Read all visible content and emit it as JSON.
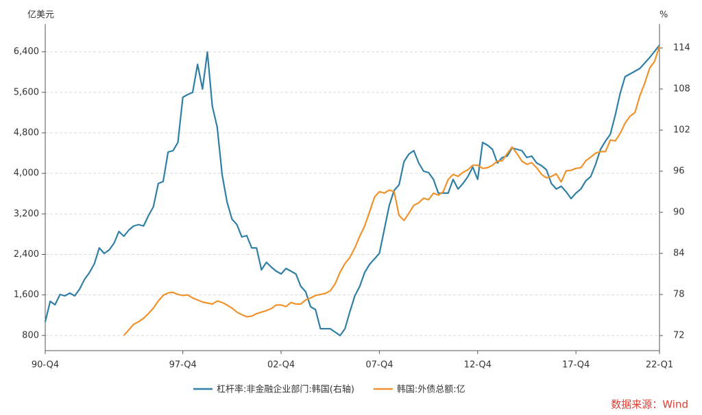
{
  "chart_data": {
    "type": "line",
    "y_label": "亿美元",
    "y2_label": "%",
    "source": "数据来源：Wind",
    "categories": [
      "90-Q4",
      null,
      null,
      null,
      null,
      null,
      null,
      null,
      null,
      null,
      null,
      null,
      null,
      null,
      null,
      null,
      null,
      null,
      null,
      null,
      null,
      null,
      null,
      null,
      null,
      null,
      null,
      null,
      "97-Q4",
      null,
      null,
      null,
      null,
      null,
      null,
      null,
      null,
      null,
      null,
      null,
      null,
      null,
      null,
      null,
      null,
      null,
      null,
      null,
      "02-Q4",
      null,
      null,
      null,
      null,
      null,
      null,
      null,
      null,
      null,
      null,
      null,
      null,
      null,
      null,
      null,
      null,
      null,
      null,
      null,
      "07-Q4",
      null,
      null,
      null,
      null,
      null,
      null,
      null,
      null,
      null,
      null,
      null,
      null,
      null,
      null,
      null,
      null,
      null,
      null,
      null,
      "12-Q4",
      null,
      null,
      null,
      null,
      null,
      null,
      null,
      null,
      null,
      null,
      null,
      null,
      null,
      null,
      null,
      null,
      null,
      null,
      null,
      "17-Q4",
      null,
      null,
      null,
      null,
      null,
      null,
      null,
      null,
      null,
      null,
      null,
      null,
      null,
      null,
      null,
      null,
      "22-Q1"
    ],
    "series": [
      {
        "name": "杠杆率:非金融企业部门:韩国(右轴)",
        "color": "#2e7ea6",
        "axis": "y2",
        "values": [
          74,
          77,
          76.5,
          78,
          77.8,
          78.2,
          77.8,
          78.8,
          80.2,
          81.2,
          82.5,
          84.8,
          84,
          84.5,
          85.5,
          87.2,
          86.5,
          87.4,
          88,
          88.2,
          88,
          89.5,
          90.8,
          94.2,
          94.5,
          98.8,
          99,
          100.2,
          106.8,
          107.2,
          107.5,
          111.6,
          108,
          113.4,
          105.5,
          102.4,
          95.5,
          91.5,
          89,
          88.2,
          86.4,
          86.6,
          84.8,
          84.8,
          81.6,
          82.7,
          82,
          81.4,
          81,
          81.8,
          81.4,
          81,
          79.2,
          78.4,
          76.2,
          75.8,
          73,
          73,
          73,
          72.5,
          72,
          73,
          75.5,
          77.8,
          79.2,
          81.2,
          82.4,
          83.2,
          84,
          87.5,
          91,
          93.2,
          94,
          97.4,
          98.5,
          99,
          97.2,
          96,
          95.8,
          94.8,
          92.8,
          92.8,
          92.8,
          94.8,
          93.4,
          94.2,
          95.2,
          96.6,
          94.8,
          100.2,
          99.8,
          99.2,
          97.2,
          98,
          98.2,
          99.4,
          99.2,
          99,
          98,
          98.2,
          97.2,
          96.8,
          96.2,
          94.2,
          93.4,
          93.8,
          93,
          92,
          92.8,
          93.4,
          94.6,
          95.2,
          97,
          99.2,
          100.4,
          101.4,
          104.2,
          107.4,
          109.8,
          110.2,
          110.6,
          111,
          111.8,
          112.6,
          113.5,
          114.4
        ]
      },
      {
        "name": "韩国:外债总额:亿",
        "color": "#f0922b",
        "values": [
          null,
          null,
          null,
          null,
          null,
          null,
          null,
          null,
          null,
          null,
          null,
          null,
          null,
          null,
          null,
          null,
          800,
          910,
          1020,
          1070,
          1140,
          1230,
          1340,
          1480,
          1590,
          1640,
          1650,
          1610,
          1590,
          1600,
          1540,
          1500,
          1460,
          1440,
          1420,
          1480,
          1450,
          1400,
          1340,
          1260,
          1210,
          1170,
          1180,
          1230,
          1260,
          1290,
          1330,
          1400,
          1400,
          1370,
          1450,
          1420,
          1420,
          1500,
          1540,
          1590,
          1610,
          1630,
          1680,
          1820,
          2050,
          2220,
          2340,
          2530,
          2760,
          2960,
          3240,
          3530,
          3640,
          3610,
          3670,
          3640,
          3170,
          3070,
          3210,
          3370,
          3420,
          3510,
          3480,
          3610,
          3570,
          3640,
          3880,
          3980,
          3940,
          4020,
          4070,
          4160,
          4160,
          4100,
          4110,
          4160,
          4240,
          4250,
          4390,
          4520,
          4390,
          4240,
          4180,
          4210,
          4110,
          3980,
          3910,
          3940,
          3990,
          3830,
          4050,
          4060,
          4100,
          4110,
          4250,
          4320,
          4400,
          4430,
          4430,
          4660,
          4640,
          4790,
          4990,
          5130,
          5200,
          5530,
          5780,
          6080,
          6210,
          6510
        ]
      }
    ],
    "ylim": [
      500,
      6950
    ],
    "yticks": [
      800,
      {
        "value": 1600,
        "label": "1,600"
      },
      {
        "value": 2400,
        "label": "2,400"
      },
      {
        "value": 3200,
        "label": "3,200"
      },
      {
        "value": 4000,
        "label": "4,000"
      },
      {
        "value": 4800,
        "label": "4,800"
      },
      {
        "value": 5600,
        "label": "5,600"
      },
      {
        "value": 6400,
        "label": "6,400"
      }
    ],
    "y2lim": [
      69.8,
      117.5
    ],
    "y2ticks": [
      72,
      78,
      84,
      90,
      96,
      102,
      108,
      114
    ],
    "grid": true
  }
}
